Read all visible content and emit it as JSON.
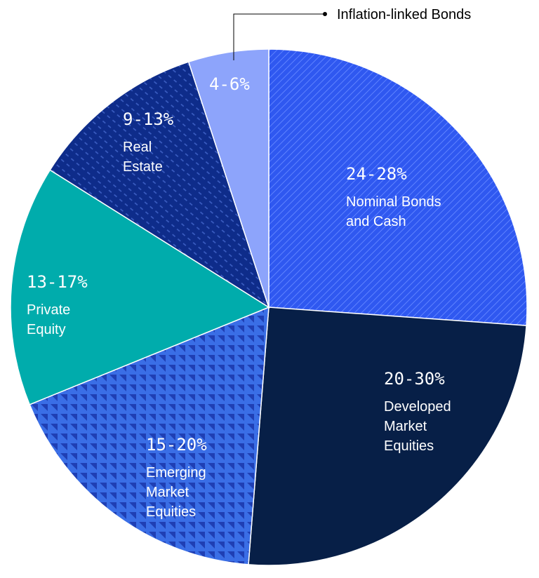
{
  "chart_data": {
    "type": "pie",
    "title": "",
    "slices": [
      {
        "range": "24-28%",
        "label": [
          "Nominal Bonds",
          "and Cash"
        ],
        "value": 26,
        "color": "#2f58f0",
        "pattern": "diag-lines"
      },
      {
        "range": "20-30%",
        "label": [
          "Developed",
          "Market",
          "Equities"
        ],
        "value": 25,
        "color": "#071f47",
        "pattern": "none"
      },
      {
        "range": "15-20%",
        "label": [
          "Emerging",
          "Market",
          "Equities"
        ],
        "value": 17.5,
        "color": "#3a6ee6",
        "pattern": "triangles"
      },
      {
        "range": "13-17%",
        "label": [
          "Private",
          "Equity"
        ],
        "value": 15,
        "color": "#00acac",
        "pattern": "none"
      },
      {
        "range": "9-13%",
        "label": [
          "Real",
          "Estate"
        ],
        "value": 11,
        "color": "#0e2c8a",
        "pattern": "dashes"
      },
      {
        "range": "4-6%",
        "label": [
          "Inflation-linked Bonds"
        ],
        "value": 5,
        "color": "#8da4fb",
        "pattern": "none",
        "callout": true
      }
    ]
  }
}
